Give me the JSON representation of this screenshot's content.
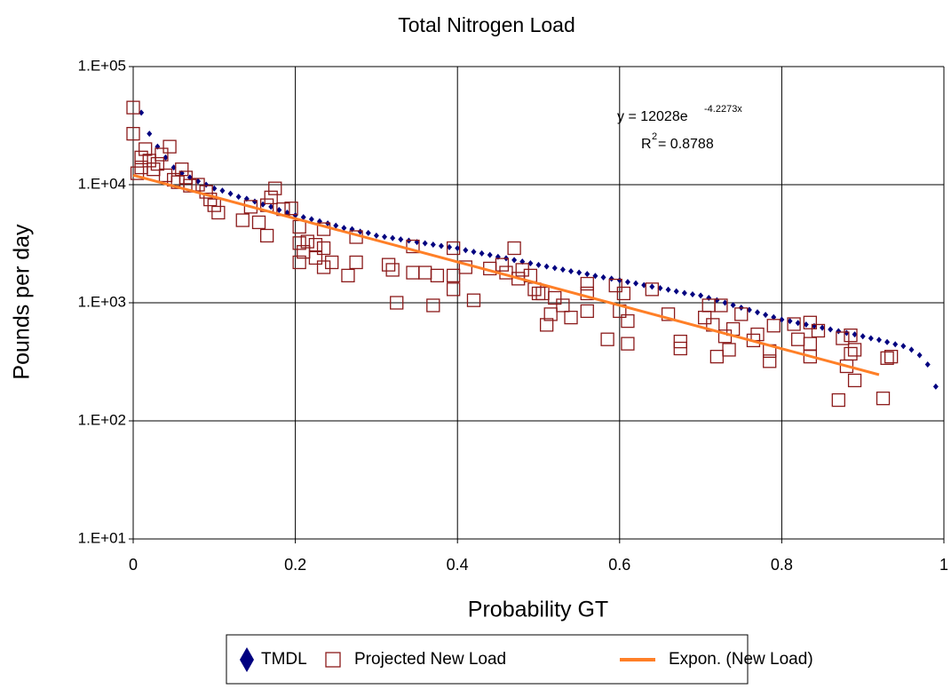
{
  "chart_data": {
    "type": "scatter",
    "title": "Total Nitrogen Load",
    "x_label": "Probability GT",
    "y_label": "Pounds per day",
    "xlim": [
      0,
      1
    ],
    "xticks": [
      0,
      0.2,
      0.4,
      0.6,
      0.8,
      1
    ],
    "ylim": [
      10,
      100000
    ],
    "log_y": true,
    "grid": true,
    "legend": "bottom",
    "yticks": [
      {
        "value": 10,
        "label": "1.E+01"
      },
      {
        "value": 100,
        "label": "1.E+02"
      },
      {
        "value": 1000,
        "label": "1.E+03"
      },
      {
        "value": 10000,
        "label": "1.E+04"
      },
      {
        "value": 100000,
        "label": "1.E+05"
      }
    ],
    "annotation": {
      "equation": "y = 12028e",
      "exponent": "-4.2273x",
      "r2_label": "R",
      "r2_sup": "2",
      "r2_value": " = 0.8788"
    },
    "series": [
      {
        "name": "TMDL",
        "color": "#000080",
        "marker": "diamond",
        "x": [
          0.01,
          0.02,
          0.03,
          0.04,
          0.05,
          0.06,
          0.07,
          0.08,
          0.09,
          0.1,
          0.11,
          0.12,
          0.13,
          0.14,
          0.15,
          0.16,
          0.17,
          0.18,
          0.19,
          0.2,
          0.21,
          0.22,
          0.23,
          0.24,
          0.25,
          0.26,
          0.27,
          0.28,
          0.29,
          0.3,
          0.31,
          0.32,
          0.33,
          0.34,
          0.35,
          0.36,
          0.37,
          0.38,
          0.39,
          0.4,
          0.41,
          0.42,
          0.43,
          0.44,
          0.45,
          0.46,
          0.47,
          0.48,
          0.49,
          0.5,
          0.51,
          0.52,
          0.53,
          0.54,
          0.55,
          0.56,
          0.57,
          0.58,
          0.59,
          0.6,
          0.61,
          0.62,
          0.63,
          0.64,
          0.65,
          0.66,
          0.67,
          0.68,
          0.69,
          0.7,
          0.71,
          0.72,
          0.73,
          0.74,
          0.75,
          0.76,
          0.77,
          0.78,
          0.79,
          0.8,
          0.81,
          0.82,
          0.83,
          0.84,
          0.85,
          0.86,
          0.87,
          0.88,
          0.89,
          0.9,
          0.91,
          0.92,
          0.93,
          0.94,
          0.95,
          0.96,
          0.97,
          0.98,
          0.99
        ],
        "values": [
          40700,
          27000,
          21000,
          17000,
          14000,
          12500,
          11500,
          10700,
          10000,
          9300,
          8900,
          8400,
          7900,
          7600,
          7200,
          6800,
          6500,
          6100,
          5800,
          5500,
          5300,
          5100,
          4900,
          4700,
          4500,
          4300,
          4200,
          4000,
          3900,
          3700,
          3620,
          3530,
          3440,
          3360,
          3270,
          3190,
          3110,
          3030,
          2960,
          2900,
          2790,
          2700,
          2620,
          2540,
          2450,
          2380,
          2300,
          2230,
          2160,
          2090,
          2030,
          1970,
          1910,
          1850,
          1800,
          1750,
          1690,
          1640,
          1600,
          1550,
          1500,
          1460,
          1410,
          1370,
          1330,
          1290,
          1250,
          1210,
          1180,
          1150,
          1100,
          1050,
          1000,
          955,
          910,
          870,
          830,
          790,
          755,
          720,
          700,
          675,
          655,
          635,
          615,
          595,
          575,
          555,
          540,
          520,
          500,
          485,
          465,
          445,
          430,
          400,
          360,
          300,
          195
        ]
      },
      {
        "name": "Projected New Load",
        "color": "#8b1a1a",
        "marker": "square",
        "x": [
          0,
          0,
          0.005,
          0.01,
          0.01,
          0.015,
          0.02,
          0.025,
          0.03,
          0.035,
          0.045,
          0.04,
          0.05,
          0.055,
          0.06,
          0.065,
          0.07,
          0.08,
          0.09,
          0.095,
          0.1,
          0.105,
          0.135,
          0.145,
          0.155,
          0.165,
          0.165,
          0.17,
          0.175,
          0.185,
          0.195,
          0.205,
          0.205,
          0.205,
          0.21,
          0.215,
          0.225,
          0.225,
          0.235,
          0.235,
          0.235,
          0.245,
          0.265,
          0.275,
          0.275,
          0.315,
          0.32,
          0.325,
          0.345,
          0.345,
          0.36,
          0.37,
          0.375,
          0.395,
          0.395,
          0.395,
          0.41,
          0.42,
          0.44,
          0.455,
          0.46,
          0.47,
          0.475,
          0.48,
          0.49,
          0.495,
          0.5,
          0.505,
          0.51,
          0.515,
          0.52,
          0.53,
          0.54,
          0.56,
          0.56,
          0.56,
          0.585,
          0.595,
          0.6,
          0.605,
          0.61,
          0.61,
          0.64,
          0.66,
          0.675,
          0.675,
          0.705,
          0.71,
          0.715,
          0.725,
          0.72,
          0.73,
          0.735,
          0.74,
          0.75,
          0.765,
          0.77,
          0.785,
          0.785,
          0.79,
          0.815,
          0.82,
          0.835,
          0.835,
          0.835,
          0.845,
          0.87,
          0.875,
          0.88,
          0.885,
          0.885,
          0.89,
          0.89,
          0.925,
          0.93,
          0.935
        ],
        "values": [
          45000,
          27000,
          12500,
          17000,
          14000,
          20000,
          16000,
          13500,
          15000,
          18000,
          21000,
          12000,
          11000,
          10500,
          13500,
          11500,
          9800,
          10000,
          8700,
          7500,
          6700,
          5800,
          5000,
          6500,
          4800,
          6700,
          3700,
          7800,
          9300,
          6200,
          6300,
          4400,
          3200,
          2200,
          2700,
          3300,
          2400,
          3100,
          4200,
          2900,
          2000,
          2200,
          1700,
          3600,
          2200,
          2100,
          1900,
          1000,
          3000,
          1800,
          1800,
          950,
          1700,
          2900,
          1700,
          1300,
          2000,
          1050,
          1950,
          2100,
          1800,
          2900,
          1600,
          1900,
          1700,
          1300,
          1200,
          1200,
          650,
          800,
          1100,
          950,
          750,
          1450,
          1200,
          850,
          490,
          1400,
          850,
          1200,
          700,
          450,
          1300,
          800,
          410,
          470,
          750,
          950,
          650,
          950,
          350,
          520,
          400,
          600,
          800,
          480,
          540,
          390,
          320,
          640,
          660,
          490,
          680,
          450,
          350,
          580,
          150,
          500,
          290,
          530,
          370,
          400,
          220,
          155,
          340,
          350
        ]
      },
      {
        "name": "Expon. (New Load)",
        "color": "#ff7f27",
        "marker": "line",
        "x": [
          0,
          0.92
        ],
        "values": [
          12028,
          246
        ]
      }
    ]
  }
}
